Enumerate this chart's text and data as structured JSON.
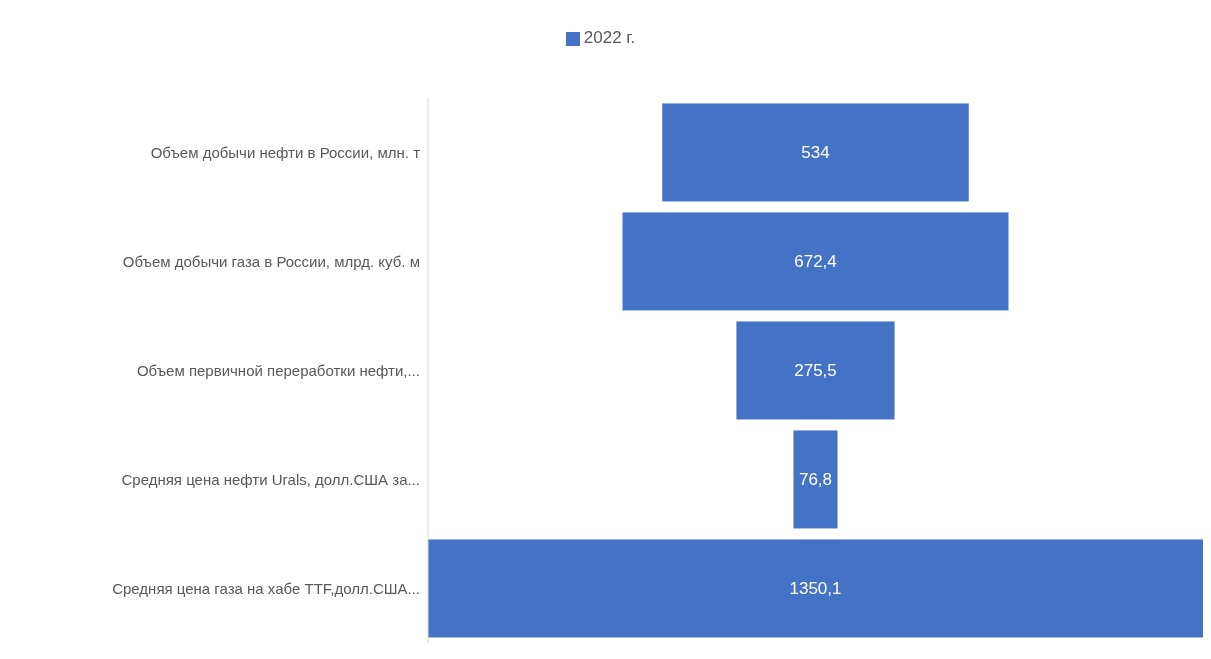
{
  "chart_data": {
    "type": "other",
    "categories": [
      "Объем добычи нефти в России, млн. т",
      "Объем добычи газа в России, млрд. куб. м",
      "Объем первичной переработки нефти,...",
      "Средняя цена нефти Urals, долл.США за...",
      "Средняя цена газа на хабе TTF,долл.США..."
    ],
    "series": [
      {
        "name": "2022 г.",
        "color": "#4472c4",
        "values": [
          534,
          672.4,
          275.5,
          76.8,
          1350.1
        ],
        "value_labels": [
          "534",
          "672,4",
          "275,5",
          "76,8",
          "1350,1"
        ]
      }
    ],
    "legend": "top"
  }
}
